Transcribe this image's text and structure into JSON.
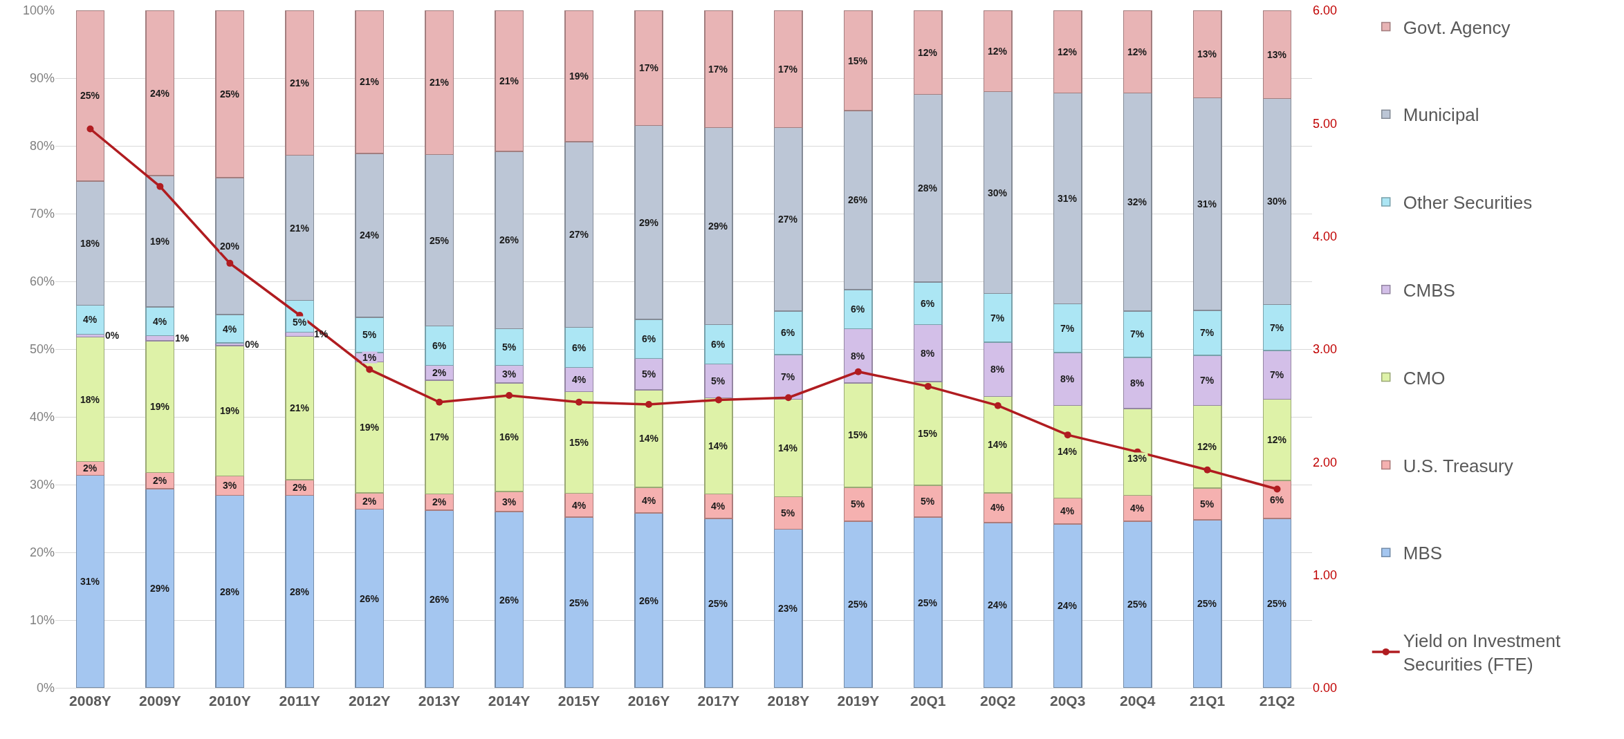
{
  "chart_data": {
    "type": "bar",
    "stacked": true,
    "categories": [
      "2008Y",
      "2009Y",
      "2010Y",
      "2011Y",
      "2012Y",
      "2013Y",
      "2014Y",
      "2015Y",
      "2016Y",
      "2017Y",
      "2018Y",
      "2019Y",
      "20Q1",
      "20Q2",
      "20Q3",
      "20Q4",
      "21Q1",
      "21Q2"
    ],
    "series": [
      {
        "name": "MBS",
        "color": "#a4c6f0",
        "values": [
          31.4,
          29.4,
          28.4,
          28.4,
          26.4,
          26.2,
          26.0,
          25.2,
          25.8,
          25.0,
          23.4,
          24.6,
          25.2,
          24.4,
          24.2,
          24.6,
          24.8,
          25.0
        ],
        "value_labels": [
          "31%",
          "29%",
          "28%",
          "28%",
          "26%",
          "26%",
          "26%",
          "25%",
          "26%",
          "25%",
          "23%",
          "25%",
          "25%",
          "24%",
          "24%",
          "25%",
          "25%",
          "25%"
        ]
      },
      {
        "name": "U.S. Treasury",
        "color": "#f5b1b0",
        "values": [
          2.0,
          2.4,
          2.9,
          2.3,
          2.4,
          2.4,
          3.0,
          3.5,
          3.8,
          3.6,
          4.8,
          5.0,
          4.7,
          4.4,
          3.8,
          3.8,
          4.7,
          5.6
        ],
        "value_labels": [
          "2%",
          "2%",
          "3%",
          "2%",
          "2%",
          "2%",
          "3%",
          "4%",
          "4%",
          "4%",
          "5%",
          "5%",
          "5%",
          "4%",
          "4%",
          "4%",
          "5%",
          "6%"
        ]
      },
      {
        "name": "CMO",
        "color": "#def2a8",
        "values": [
          18.4,
          19.4,
          19.2,
          21.2,
          19.3,
          16.8,
          16.0,
          15.0,
          14.4,
          14.2,
          14.4,
          15.4,
          15.3,
          14.2,
          13.7,
          12.8,
          12.2,
          12.0
        ],
        "value_labels": [
          "18%",
          "19%",
          "19%",
          "21%",
          "19%",
          "17%",
          "16%",
          "15%",
          "14%",
          "14%",
          "14%",
          "15%",
          "15%",
          "14%",
          "14%",
          "13%",
          "12%",
          "12%"
        ]
      },
      {
        "name": "CMBS",
        "color": "#d3bfe8",
        "values": [
          0.4,
          0.8,
          0.4,
          0.6,
          1.4,
          2.2,
          2.6,
          3.6,
          4.6,
          5.0,
          6.6,
          8.0,
          8.4,
          8.0,
          7.8,
          7.6,
          7.4,
          7.2
        ],
        "value_labels": [
          "0%",
          "1%",
          "0%",
          "1%",
          "1%",
          "2%",
          "3%",
          "4%",
          "5%",
          "5%",
          "7%",
          "8%",
          "8%",
          "8%",
          "8%",
          "8%",
          "7%",
          "7%"
        ]
      },
      {
        "name": "Other Securities",
        "color": "#ace6f4",
        "values": [
          4.3,
          4.2,
          4.2,
          4.7,
          5.2,
          5.8,
          5.4,
          5.9,
          5.8,
          5.8,
          6.4,
          5.8,
          6.3,
          7.2,
          7.2,
          6.8,
          6.6,
          6.8
        ],
        "value_labels": [
          "4%",
          "4%",
          "4%",
          "5%",
          "5%",
          "6%",
          "5%",
          "6%",
          "6%",
          "6%",
          "6%",
          "6%",
          "6%",
          "7%",
          "7%",
          "7%",
          "7%",
          "7%"
        ]
      },
      {
        "name": "Municipal",
        "color": "#bcc6d6",
        "values": [
          18.3,
          19.4,
          20.2,
          21.4,
          24.2,
          25.3,
          26.2,
          27.4,
          28.6,
          29.1,
          27.1,
          26.4,
          27.7,
          29.8,
          31.1,
          32.2,
          31.4,
          30.4
        ],
        "value_labels": [
          "18%",
          "19%",
          "20%",
          "21%",
          "24%",
          "25%",
          "26%",
          "27%",
          "29%",
          "29%",
          "27%",
          "26%",
          "28%",
          "30%",
          "31%",
          "32%",
          "31%",
          "30%"
        ]
      },
      {
        "name": "Govt. Agency",
        "color": "#e8b4b5",
        "values": [
          25.2,
          24.4,
          24.7,
          21.4,
          21.1,
          21.3,
          20.8,
          19.4,
          17.0,
          17.3,
          17.3,
          14.8,
          12.4,
          12.0,
          12.2,
          12.2,
          12.9,
          13.0
        ],
        "value_labels": [
          "25%",
          "24%",
          "25%",
          "21%",
          "21%",
          "21%",
          "21%",
          "19%",
          "17%",
          "17%",
          "17%",
          "15%",
          "12%",
          "12%",
          "12%",
          "12%",
          "13%",
          "13%"
        ]
      },
      {
        "name": "Yield on Investment Securities (FTE)",
        "type": "line",
        "axis": "y2",
        "color": "#b01c20",
        "marker": "circle",
        "values": [
          4.95,
          4.44,
          3.76,
          3.3,
          2.82,
          2.53,
          2.59,
          2.53,
          2.51,
          2.55,
          2.57,
          2.8,
          2.67,
          2.5,
          2.24,
          2.09,
          1.93,
          1.76
        ]
      }
    ],
    "ylim": [
      0,
      100
    ],
    "yticks": [
      {
        "value": 0,
        "label": "0%"
      },
      {
        "value": 10,
        "label": "10%"
      },
      {
        "value": 20,
        "label": "20%"
      },
      {
        "value": 30,
        "label": "30%"
      },
      {
        "value": 40,
        "label": "40%"
      },
      {
        "value": 50,
        "label": "50%"
      },
      {
        "value": 60,
        "label": "60%"
      },
      {
        "value": 70,
        "label": "70%"
      },
      {
        "value": 80,
        "label": "80%"
      },
      {
        "value": 90,
        "label": "90%"
      },
      {
        "value": 100,
        "label": "100%"
      }
    ],
    "y2lim": [
      0,
      6
    ],
    "y2ticks": [
      {
        "value": 0,
        "label": "0.00"
      },
      {
        "value": 1,
        "label": "1.00"
      },
      {
        "value": 2,
        "label": "2.00"
      },
      {
        "value": 3,
        "label": "3.00"
      },
      {
        "value": 4,
        "label": "4.00"
      },
      {
        "value": 5,
        "label": "5.00"
      },
      {
        "value": 6,
        "label": "6.00"
      }
    ],
    "grid": "y",
    "legend": "right"
  }
}
